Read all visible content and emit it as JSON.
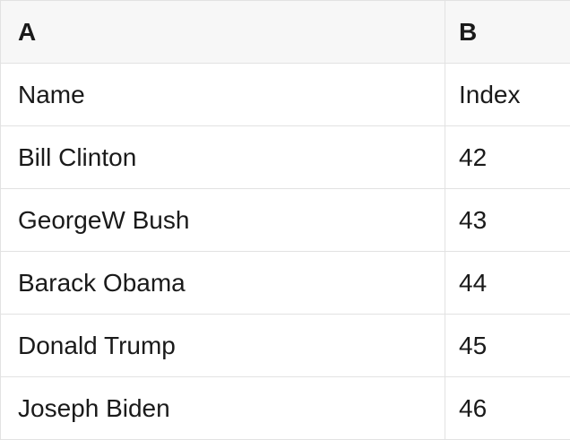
{
  "table": {
    "columns": {
      "a": {
        "label": "A"
      },
      "b": {
        "label": "B"
      }
    },
    "rows": [
      {
        "a": "Name",
        "b": "Index"
      },
      {
        "a": "Bill Clinton",
        "b": "42"
      },
      {
        "a": "GeorgeW Bush",
        "b": "43"
      },
      {
        "a": "Barack Obama",
        "b": "44"
      },
      {
        "a": "Donald Trump",
        "b": "45"
      },
      {
        "a": "Joseph Biden",
        "b": "46"
      }
    ],
    "colors": {
      "header_background": "#f7f7f7",
      "row_background": "#ffffff",
      "border": "#e2e2e2",
      "text": "#1a1a1a"
    }
  }
}
